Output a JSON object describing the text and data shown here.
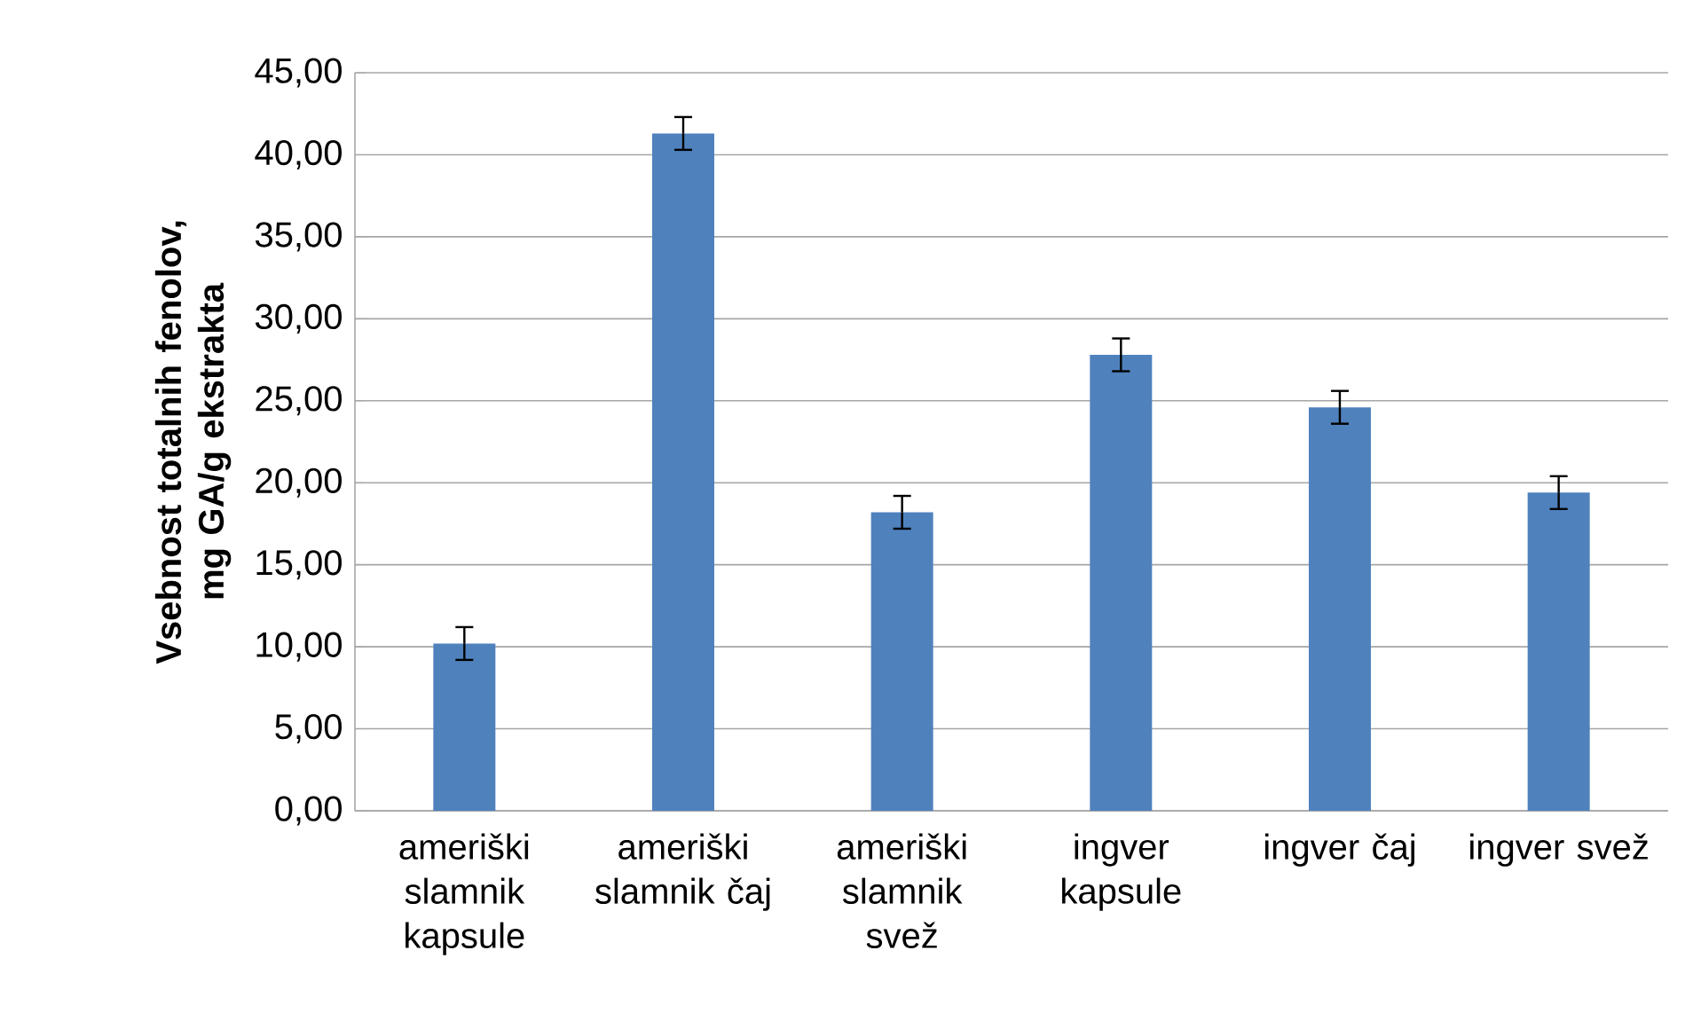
{
  "chart_data": {
    "type": "bar",
    "ylabel": "Vsebnost totalnih fenolov, mg GA/g ekstrakta",
    "categories": [
      "ameriški slamnik kapsule",
      "ameriški slamnik čaj",
      "ameriški slamnik svež",
      "ingver kapsule",
      "ingver čaj",
      "ingver svež"
    ],
    "values": [
      10.2,
      41.3,
      18.2,
      27.8,
      24.6,
      19.4
    ],
    "errors": [
      1.0,
      1.0,
      1.0,
      1.0,
      1.0,
      1.0
    ],
    "color": "#4f81bd",
    "ylim": [
      0,
      45
    ],
    "yticks": [
      {
        "value": 0,
        "label": "0,00"
      },
      {
        "value": 5,
        "label": "5,00"
      },
      {
        "value": 10,
        "label": "10,00"
      },
      {
        "value": 15,
        "label": "15,00"
      },
      {
        "value": 20,
        "label": "20,00"
      },
      {
        "value": 25,
        "label": "25,00"
      },
      {
        "value": 30,
        "label": "30,00"
      },
      {
        "value": 35,
        "label": "35,00"
      },
      {
        "value": 40,
        "label": "40,00"
      },
      {
        "value": 45,
        "label": "45,00"
      }
    ],
    "grid": "y"
  }
}
